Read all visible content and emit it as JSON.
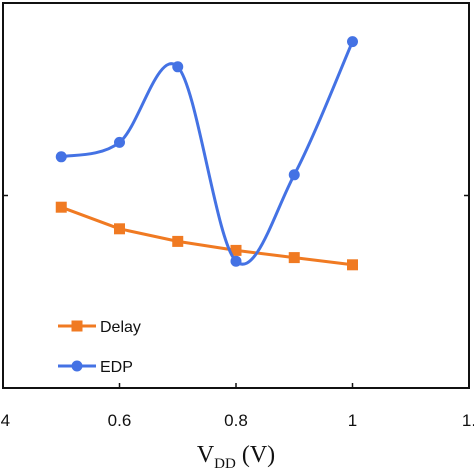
{
  "chart_data": {
    "type": "line",
    "xlabel": "V",
    "xlabel_sub": "DD",
    "xlabel_unit": " (V)",
    "xlim": [
      0.4,
      1.2
    ],
    "x_ticks": [
      {
        "value": 0.4,
        "label": ".4"
      },
      {
        "value": 0.6,
        "label": "0.6"
      },
      {
        "value": 0.8,
        "label": "0.8"
      },
      {
        "value": 1.0,
        "label": "1"
      },
      {
        "value": 1.2,
        "label": "1."
      }
    ],
    "y_tick_fractions": [
      0.5
    ],
    "grid": false,
    "legend_position": "bottom-left",
    "series": [
      {
        "name": "Delay",
        "color": "#F07A22",
        "marker": "square",
        "smooth": false,
        "x": [
          0.5,
          0.6,
          0.7,
          0.8,
          0.9,
          1.0
        ],
        "y": [
          0.48,
          0.42,
          0.385,
          0.36,
          0.34,
          0.32
        ]
      },
      {
        "name": "EDP",
        "color": "#4472E4",
        "marker": "circle",
        "smooth": true,
        "x": [
          0.5,
          0.6,
          0.7,
          0.8,
          0.9,
          1.0
        ],
        "y": [
          0.62,
          0.66,
          0.87,
          0.33,
          0.57,
          0.94
        ]
      }
    ]
  }
}
